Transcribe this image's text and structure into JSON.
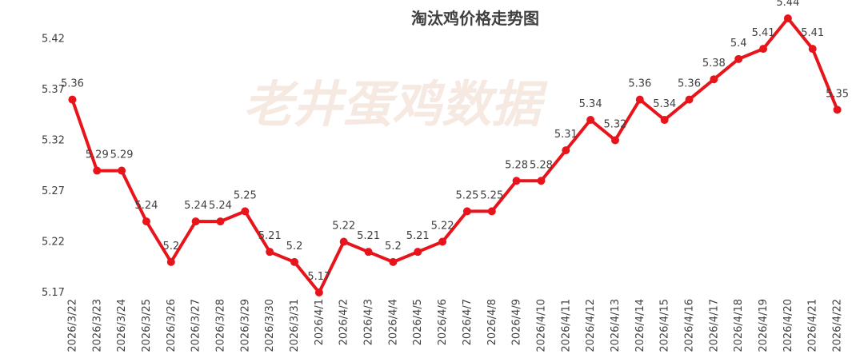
{
  "chart_data": {
    "type": "line",
    "title": "淘汰鸡价格走势图",
    "watermark": "老井蛋鸡数据",
    "xlabel": "",
    "ylabel": "",
    "ylim": [
      5.17,
      5.44
    ],
    "yticks": [
      "5.17",
      "5.22",
      "5.27",
      "5.32",
      "5.37",
      "5.42"
    ],
    "grid": false,
    "line_color": "#e8141b",
    "categories": [
      "2026/3/22",
      "2026/3/23",
      "2026/3/24",
      "2026/3/25",
      "2026/3/26",
      "2026/3/27",
      "2026/3/28",
      "2026/3/29",
      "2026/3/30",
      "2026/3/31",
      "2026/4/1",
      "2026/4/2",
      "2026/4/3",
      "2026/4/4",
      "2026/4/5",
      "2026/4/6",
      "2026/4/7",
      "2026/4/8",
      "2026/4/9",
      "2026/4/10",
      "2026/4/11",
      "2026/4/12",
      "2026/4/13",
      "2026/4/14",
      "2026/4/15",
      "2026/4/16",
      "2026/4/17",
      "2026/4/18",
      "2026/4/19",
      "2026/4/20",
      "2026/4/21",
      "2026/4/22"
    ],
    "values": [
      5.36,
      5.29,
      5.29,
      5.24,
      5.2,
      5.24,
      5.24,
      5.25,
      5.21,
      5.2,
      5.17,
      5.22,
      5.21,
      5.2,
      5.21,
      5.22,
      5.25,
      5.25,
      5.28,
      5.28,
      5.31,
      5.34,
      5.32,
      5.36,
      5.34,
      5.36,
      5.38,
      5.4,
      5.41,
      5.44,
      5.41,
      5.35
    ]
  }
}
